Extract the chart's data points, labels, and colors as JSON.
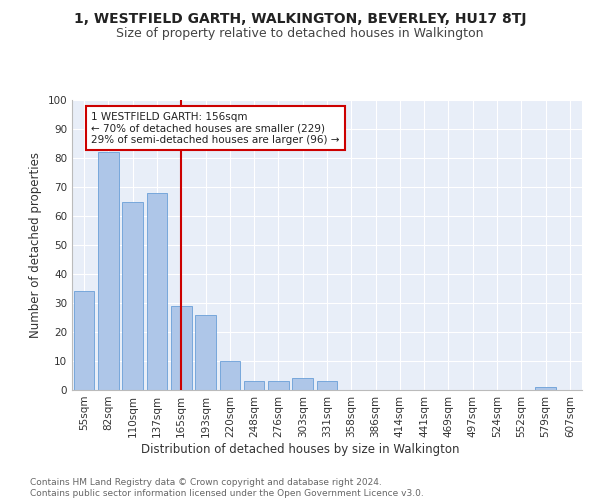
{
  "title": "1, WESTFIELD GARTH, WALKINGTON, BEVERLEY, HU17 8TJ",
  "subtitle": "Size of property relative to detached houses in Walkington",
  "xlabel": "Distribution of detached houses by size in Walkington",
  "ylabel": "Number of detached properties",
  "categories": [
    "55sqm",
    "82sqm",
    "110sqm",
    "137sqm",
    "165sqm",
    "193sqm",
    "220sqm",
    "248sqm",
    "276sqm",
    "303sqm",
    "331sqm",
    "358sqm",
    "386sqm",
    "414sqm",
    "441sqm",
    "469sqm",
    "497sqm",
    "524sqm",
    "552sqm",
    "579sqm",
    "607sqm"
  ],
  "values": [
    34,
    82,
    65,
    68,
    29,
    26,
    10,
    3,
    3,
    4,
    3,
    0,
    0,
    0,
    0,
    0,
    0,
    0,
    0,
    1,
    0
  ],
  "bar_color": "#aec6e8",
  "bar_edge_color": "#6a9fd8",
  "vline_x": 4,
  "vline_color": "#cc0000",
  "annotation_text": "1 WESTFIELD GARTH: 156sqm\n← 70% of detached houses are smaller (229)\n29% of semi-detached houses are larger (96) →",
  "annotation_box_color": "#ffffff",
  "annotation_box_edge_color": "#cc0000",
  "ylim": [
    0,
    100
  ],
  "yticks": [
    0,
    10,
    20,
    30,
    40,
    50,
    60,
    70,
    80,
    90,
    100
  ],
  "footer_text": "Contains HM Land Registry data © Crown copyright and database right 2024.\nContains public sector information licensed under the Open Government Licence v3.0.",
  "background_color": "#e8eef8",
  "fig_background_color": "#ffffff",
  "title_fontsize": 10,
  "subtitle_fontsize": 9,
  "axis_label_fontsize": 8.5,
  "tick_fontsize": 7.5,
  "footer_fontsize": 6.5
}
